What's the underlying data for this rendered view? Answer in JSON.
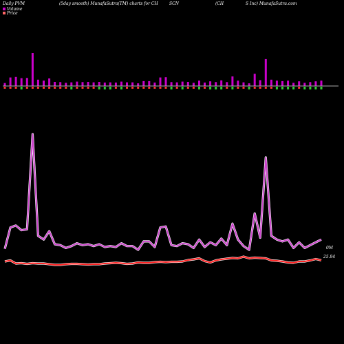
{
  "header": {
    "left": "Daily PVM",
    "middle": "(5day smooth) MunafaSutra(TM) charts for CH",
    "ticker": "SCN",
    "right_a": "(CH",
    "right_b": "S Inc) MunafaSutra.com"
  },
  "legend": {
    "volume_label": "Volume",
    "price_label": "Price",
    "volume_color": "#cc00cc",
    "price_color": "#ff6666"
  },
  "colors": {
    "background": "#000000",
    "volume_up": "#cc00cc",
    "volume_down": "#ff3333",
    "volume_green": "#33cc33",
    "volume_line": "#cc44cc",
    "price_line": "#ff2222",
    "baseline": "#aaaaaa"
  },
  "chart_data": {
    "type": "line",
    "series": [
      {
        "name": "Volume",
        "values": [
          1.2,
          3.5,
          3.7,
          3.2,
          3.3,
          13.5,
          2.6,
          2.2,
          3.1,
          1.7,
          1.6,
          1.3,
          1.5,
          1.8,
          1.6,
          1.7,
          1.5,
          1.7,
          1.4,
          1.5,
          1.4,
          1.8,
          1.5,
          1.5,
          1.1,
          2.0,
          2.0,
          1.4,
          3.5,
          3.6,
          1.6,
          1.5,
          1.8,
          1.7,
          1.3,
          2.2,
          1.4,
          1.9,
          1.6,
          2.3,
          1.6,
          3.9,
          2.2,
          1.5,
          1.1,
          5.0,
          2.4,
          11.0,
          2.6,
          2.2,
          2.0,
          2.2,
          1.3,
          1.9,
          1.3,
          1.6,
          1.9,
          2.2
        ]
      },
      {
        "name": "Price",
        "values": [
          25.6,
          25.9,
          25.0,
          25.1,
          24.9,
          25.1,
          25.0,
          25.0,
          24.8,
          24.6,
          24.6,
          24.8,
          24.9,
          24.9,
          24.8,
          24.7,
          24.8,
          24.8,
          25.0,
          25.1,
          25.2,
          25.1,
          24.9,
          25.0,
          25.3,
          25.2,
          25.2,
          25.4,
          25.5,
          25.4,
          25.5,
          25.5,
          25.6,
          26.0,
          26.2,
          26.5,
          25.7,
          25.3,
          25.9,
          26.2,
          26.4,
          26.6,
          26.5,
          27.0,
          26.5,
          26.7,
          26.6,
          26.5,
          25.9,
          25.8,
          25.6,
          25.3,
          25.2,
          25.6,
          25.6,
          25.9,
          26.3,
          25.94
        ]
      }
    ],
    "bars": {
      "up": [
        1,
        1,
        1,
        0,
        1,
        1,
        1,
        1,
        1,
        1,
        1,
        1,
        0,
        1,
        1,
        1,
        1,
        0,
        0,
        0,
        1,
        0,
        1,
        1,
        1,
        1,
        1,
        1,
        1,
        1,
        0,
        1,
        0,
        1,
        1,
        0,
        1,
        0,
        0,
        0,
        1,
        0,
        1,
        1,
        0,
        1,
        1,
        1,
        1,
        0,
        0,
        0,
        0,
        1,
        0,
        0,
        0,
        0
      ]
    },
    "end_labels": {
      "volume": "0M",
      "price": "25.94"
    }
  }
}
